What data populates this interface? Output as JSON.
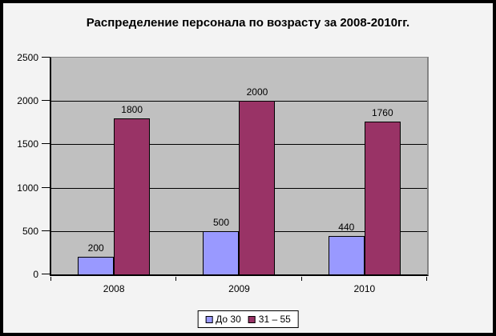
{
  "chart_data": {
    "type": "bar",
    "title": "Распределение персонала по возрасту за 2008-2010гг.",
    "categories": [
      "2008",
      "2009",
      "2010"
    ],
    "series": [
      {
        "name": "До 30",
        "values": [
          200,
          500,
          440
        ],
        "color": "#9999FF"
      },
      {
        "name": "31 – 55",
        "values": [
          1800,
          2000,
          1760
        ],
        "color": "#993366"
      }
    ],
    "ylim": [
      0,
      2500
    ],
    "yticks": [
      0,
      500,
      1000,
      1500,
      2000,
      2500
    ],
    "xlabel": "",
    "ylabel": "",
    "grid": true,
    "data_labels": true,
    "legend_position": "bottom",
    "colors": {
      "chart_background": "#F3F3F3",
      "plot_background": "#C0C0C0",
      "gridline": "#000000",
      "frame": "#000000"
    }
  }
}
